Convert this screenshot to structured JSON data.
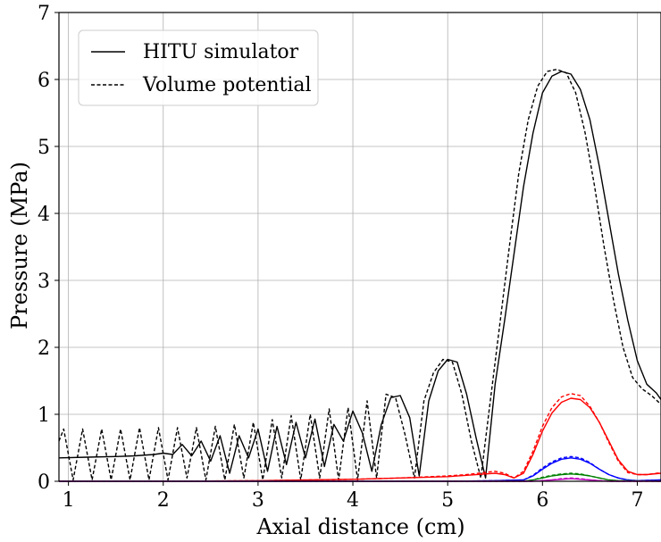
{
  "chart_data": {
    "type": "line",
    "title": "",
    "xlabel": "Axial distance (cm)",
    "ylabel": "Pressure (MPa)",
    "xlim": [
      0.9,
      7.25
    ],
    "ylim": [
      0,
      7
    ],
    "xticks": [
      "1",
      "2",
      "3",
      "4",
      "5",
      "6",
      "7"
    ],
    "yticks": [
      "0",
      "1",
      "2",
      "3",
      "4",
      "5",
      "6",
      "7"
    ],
    "grid": true,
    "legend": {
      "placement": "top-left",
      "entries": [
        {
          "label": "HITU simulator",
          "style": "solid"
        },
        {
          "label": "Volume potential",
          "style": "dashed"
        }
      ]
    },
    "colors": {
      "fundamental": "#000000",
      "h2": "#ff0000",
      "h3": "#0000ff",
      "h4": "#008000",
      "h5": "#bf00bf"
    },
    "series": [
      {
        "style": "solid",
        "color": "#000000",
        "x": [
          0.9,
          1.2,
          1.5,
          1.7,
          1.9,
          2.0,
          2.1,
          2.2,
          2.3,
          2.4,
          2.5,
          2.6,
          2.7,
          2.8,
          2.9,
          3.0,
          3.1,
          3.2,
          3.3,
          3.4,
          3.5,
          3.6,
          3.7,
          3.8,
          3.9,
          4.0,
          4.1,
          4.2,
          4.3,
          4.4,
          4.5,
          4.6,
          4.7,
          4.8,
          4.9,
          5.0,
          5.1,
          5.2,
          5.3,
          5.4,
          5.5,
          5.6,
          5.7,
          5.8,
          5.9,
          6.0,
          6.1,
          6.2,
          6.3,
          6.4,
          6.5,
          6.6,
          6.7,
          6.8,
          6.9,
          7.0,
          7.1,
          7.2,
          7.25
        ],
        "y": [
          0.35,
          0.36,
          0.37,
          0.38,
          0.4,
          0.42,
          0.4,
          0.55,
          0.38,
          0.6,
          0.3,
          0.68,
          0.12,
          0.68,
          0.35,
          0.78,
          0.15,
          0.82,
          0.25,
          0.88,
          0.35,
          0.93,
          0.22,
          0.85,
          0.6,
          1.05,
          0.72,
          0.15,
          0.85,
          1.25,
          1.28,
          0.95,
          0.08,
          1.2,
          1.65,
          1.82,
          1.78,
          1.3,
          0.65,
          0.05,
          1.45,
          2.4,
          3.4,
          4.4,
          5.2,
          5.8,
          6.05,
          6.12,
          6.08,
          5.85,
          5.4,
          4.7,
          3.9,
          3.1,
          2.4,
          1.8,
          1.45,
          1.32,
          1.22
        ]
      },
      {
        "style": "dashed",
        "color": "#000000",
        "x": [
          0.9,
          0.95,
          1.05,
          1.15,
          1.25,
          1.35,
          1.45,
          1.55,
          1.65,
          1.75,
          1.85,
          1.95,
          2.05,
          2.15,
          2.25,
          2.35,
          2.45,
          2.55,
          2.65,
          2.75,
          2.85,
          2.95,
          3.05,
          3.15,
          3.25,
          3.35,
          3.45,
          3.55,
          3.65,
          3.75,
          3.85,
          3.95,
          4.05,
          4.15,
          4.25,
          4.35,
          4.45,
          4.55,
          4.65,
          4.75,
          4.85,
          4.95,
          5.05,
          5.15,
          5.25,
          5.35,
          5.45,
          5.55,
          5.65,
          5.75,
          5.85,
          5.95,
          6.05,
          6.15,
          6.25,
          6.35,
          6.45,
          6.55,
          6.65,
          6.75,
          6.85,
          6.95,
          7.05,
          7.15,
          7.25
        ],
        "y": [
          0.6,
          0.78,
          0.02,
          0.78,
          0.02,
          0.78,
          0.02,
          0.78,
          0.02,
          0.8,
          0.02,
          0.8,
          0.02,
          0.8,
          0.05,
          0.8,
          0.02,
          0.82,
          0.02,
          0.85,
          0.05,
          0.88,
          0.02,
          0.92,
          0.05,
          0.98,
          0.02,
          1.0,
          0.05,
          1.08,
          0.02,
          1.1,
          0.02,
          1.2,
          0.05,
          1.3,
          1.25,
          0.7,
          0.05,
          1.2,
          1.62,
          1.82,
          1.78,
          1.3,
          0.6,
          0.05,
          1.2,
          2.35,
          3.5,
          4.6,
          5.4,
          5.9,
          6.12,
          6.15,
          6.1,
          5.8,
          5.2,
          4.4,
          3.5,
          2.7,
          2.0,
          1.55,
          1.38,
          1.28,
          1.15
        ]
      },
      {
        "style": "solid",
        "color": "#ff0000",
        "x": [
          0.9,
          2.0,
          3.0,
          4.0,
          4.5,
          5.0,
          5.2,
          5.5,
          5.6,
          5.7,
          5.8,
          5.9,
          6.0,
          6.1,
          6.2,
          6.3,
          6.4,
          6.5,
          6.6,
          6.7,
          6.8,
          6.9,
          7.0,
          7.1,
          7.25
        ],
        "y": [
          0.0,
          0.0,
          0.01,
          0.03,
          0.05,
          0.07,
          0.09,
          0.12,
          0.1,
          0.05,
          0.12,
          0.4,
          0.75,
          1.02,
          1.18,
          1.24,
          1.22,
          1.1,
          0.88,
          0.6,
          0.32,
          0.15,
          0.1,
          0.1,
          0.12
        ]
      },
      {
        "style": "dashed",
        "color": "#ff0000",
        "x": [
          0.9,
          2.0,
          3.0,
          4.0,
          4.5,
          5.0,
          5.2,
          5.5,
          5.6,
          5.7,
          5.8,
          5.9,
          6.0,
          6.1,
          6.2,
          6.3,
          6.4,
          6.5,
          6.6,
          6.7,
          6.8,
          6.9,
          7.0,
          7.1,
          7.25
        ],
        "y": [
          0.0,
          0.0,
          0.01,
          0.03,
          0.05,
          0.08,
          0.1,
          0.15,
          0.12,
          0.05,
          0.15,
          0.45,
          0.82,
          1.1,
          1.26,
          1.31,
          1.28,
          1.12,
          0.88,
          0.58,
          0.3,
          0.13,
          0.1,
          0.1,
          0.13
        ]
      },
      {
        "style": "solid",
        "color": "#0000ff",
        "x": [
          0.9,
          5.0,
          5.5,
          5.8,
          5.9,
          6.0,
          6.1,
          6.2,
          6.3,
          6.4,
          6.5,
          6.6,
          6.7,
          6.8,
          6.9,
          7.0,
          7.25
        ],
        "y": [
          0.0,
          0.0,
          0.01,
          0.02,
          0.08,
          0.18,
          0.27,
          0.33,
          0.35,
          0.33,
          0.27,
          0.18,
          0.1,
          0.05,
          0.02,
          0.01,
          0.02
        ]
      },
      {
        "style": "dashed",
        "color": "#0000ff",
        "x": [
          0.9,
          5.0,
          5.5,
          5.8,
          5.9,
          6.0,
          6.1,
          6.2,
          6.3,
          6.4,
          6.5,
          6.6,
          6.7,
          6.8,
          6.9,
          7.0,
          7.25
        ],
        "y": [
          0.0,
          0.0,
          0.01,
          0.02,
          0.09,
          0.2,
          0.29,
          0.35,
          0.37,
          0.35,
          0.28,
          0.18,
          0.1,
          0.05,
          0.02,
          0.01,
          0.02
        ]
      },
      {
        "style": "solid",
        "color": "#008000",
        "x": [
          0.9,
          5.8,
          5.9,
          6.0,
          6.1,
          6.2,
          6.3,
          6.4,
          6.5,
          6.6,
          6.7,
          6.8,
          7.25
        ],
        "y": [
          0.0,
          0.0,
          0.02,
          0.05,
          0.08,
          0.1,
          0.11,
          0.1,
          0.08,
          0.05,
          0.02,
          0.01,
          0.0
        ]
      },
      {
        "style": "dashed",
        "color": "#008000",
        "x": [
          0.9,
          5.8,
          5.9,
          6.0,
          6.1,
          6.2,
          6.3,
          6.4,
          6.5,
          6.6,
          6.7,
          6.8,
          7.25
        ],
        "y": [
          0.0,
          0.0,
          0.02,
          0.06,
          0.09,
          0.11,
          0.12,
          0.11,
          0.08,
          0.05,
          0.02,
          0.01,
          0.0
        ]
      },
      {
        "style": "solid",
        "color": "#bf00bf",
        "x": [
          0.9,
          5.9,
          6.0,
          6.1,
          6.2,
          6.3,
          6.4,
          6.5,
          6.6,
          6.7,
          7.25
        ],
        "y": [
          0.0,
          0.0,
          0.01,
          0.02,
          0.03,
          0.04,
          0.03,
          0.02,
          0.01,
          0.0,
          0.0
        ]
      },
      {
        "style": "dashed",
        "color": "#bf00bf",
        "x": [
          0.9,
          5.9,
          6.0,
          6.1,
          6.2,
          6.3,
          6.4,
          6.5,
          6.6,
          6.7,
          7.25
        ],
        "y": [
          0.0,
          0.0,
          0.01,
          0.02,
          0.04,
          0.05,
          0.04,
          0.02,
          0.01,
          0.0,
          0.0
        ]
      }
    ]
  }
}
